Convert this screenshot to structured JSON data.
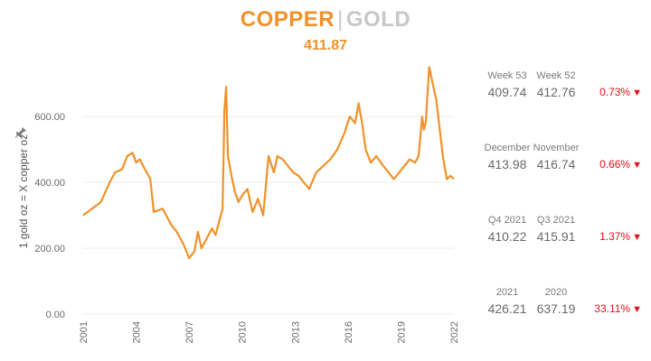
{
  "header": {
    "title_left": "COPPER",
    "title_sep": "|",
    "title_right": "GOLD",
    "current_value": "411.87"
  },
  "colors": {
    "accent": "#f0912a",
    "muted": "#c8c8c8",
    "negative": "#e0101a"
  },
  "icons": {
    "pin": "pin-icon"
  },
  "stats": [
    {
      "label_a": "Week 53",
      "value_a": "409.74",
      "label_b": "Week 52",
      "value_b": "412.76",
      "change": "0.73%",
      "direction": "down"
    },
    {
      "label_a": "December",
      "value_a": "413.98",
      "label_b": "November",
      "value_b": "416.74",
      "change": "0.66%",
      "direction": "down"
    },
    {
      "label_a": "Q4 2021",
      "value_a": "410.22",
      "label_b": "Q3 2021",
      "value_b": "415.91",
      "change": "1.37%",
      "direction": "down"
    },
    {
      "label_a": "2021",
      "value_a": "426.21",
      "label_b": "2020",
      "value_b": "637.19",
      "change": "33.11%",
      "direction": "down"
    }
  ],
  "chart_data": {
    "type": "line",
    "title": "COPPER | GOLD",
    "xlabel": "",
    "ylabel": "1 gold oz = X copper oz",
    "xlim": [
      2001,
      2022
    ],
    "ylim": [
      0,
      740
    ],
    "x_ticks": [
      "2001",
      "2004",
      "2007",
      "2010",
      "2013",
      "2016",
      "2019",
      "2022"
    ],
    "y_ticks": [
      0,
      200,
      400,
      600
    ],
    "y_tick_labels": [
      "0.00",
      "200.00",
      "400.00",
      "600.00"
    ],
    "grid": true,
    "legend": "none",
    "series": [
      {
        "name": "",
        "x": [
          2001.0,
          2001.5,
          2002.0,
          2002.5,
          2002.8,
          2003.2,
          2003.5,
          2003.8,
          2004.0,
          2004.2,
          2004.5,
          2004.8,
          2005.0,
          2005.5,
          2006.0,
          2006.3,
          2006.5,
          2006.7,
          2007.0,
          2007.3,
          2007.5,
          2007.7,
          2008.0,
          2008.3,
          2008.5,
          2008.7,
          2008.9,
          2009.0,
          2009.1,
          2009.2,
          2009.4,
          2009.6,
          2009.8,
          2010.0,
          2010.3,
          2010.6,
          2010.9,
          2011.2,
          2011.5,
          2011.8,
          2012.0,
          2012.3,
          2012.6,
          2012.9,
          2013.2,
          2013.5,
          2013.8,
          2014.2,
          2014.6,
          2015.0,
          2015.4,
          2015.8,
          2016.1,
          2016.4,
          2016.6,
          2016.8,
          2017.0,
          2017.3,
          2017.6,
          2018.0,
          2018.3,
          2018.6,
          2018.9,
          2019.2,
          2019.5,
          2019.8,
          2020.0,
          2020.2,
          2020.3,
          2020.4,
          2020.6,
          2020.8,
          2021.0,
          2021.2,
          2021.4,
          2021.6,
          2021.8,
          2022.0
        ],
        "values": [
          300,
          320,
          340,
          400,
          430,
          440,
          480,
          490,
          460,
          470,
          440,
          410,
          310,
          320,
          270,
          250,
          230,
          210,
          170,
          190,
          250,
          200,
          230,
          260,
          240,
          280,
          320,
          620,
          690,
          480,
          420,
          370,
          340,
          360,
          380,
          310,
          350,
          300,
          480,
          430,
          480,
          470,
          450,
          430,
          420,
          400,
          380,
          430,
          450,
          470,
          500,
          550,
          600,
          580,
          640,
          580,
          500,
          460,
          480,
          450,
          430,
          410,
          430,
          450,
          470,
          460,
          480,
          600,
          560,
          580,
          750,
          700,
          650,
          560,
          470,
          410,
          420,
          410
        ]
      }
    ]
  }
}
